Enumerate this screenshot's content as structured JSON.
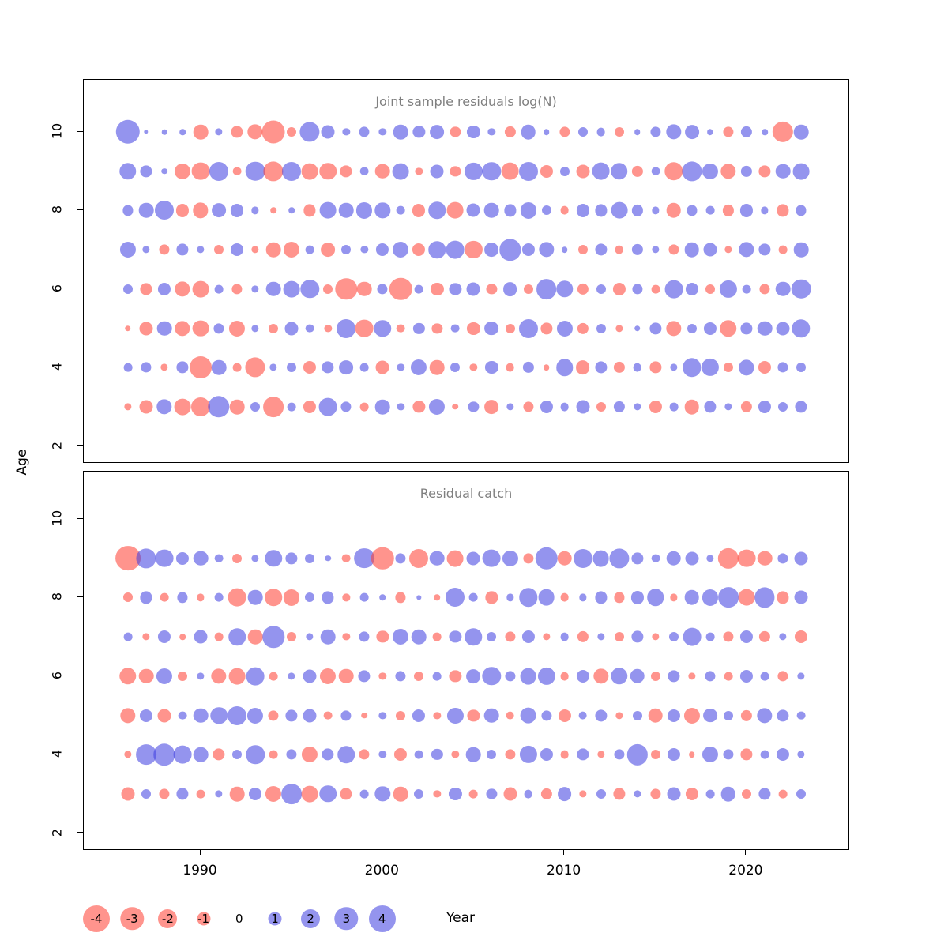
{
  "figure": {
    "y_axis_label": "Age",
    "x_axis_label": "Year"
  },
  "axes": {
    "y_tick_labels": [
      "10",
      "8",
      "6",
      "4",
      "2"
    ],
    "y_tick_ages": [
      10,
      8,
      6,
      4,
      2
    ],
    "x_tick_labels": [
      "1990",
      "2000",
      "2010",
      "2020"
    ],
    "x_tick_years": [
      1990,
      2000,
      2010,
      2020
    ]
  },
  "colors": {
    "negative": "#ff3c30",
    "positive": "#3c3ce0",
    "title_gray": "#7f7f7f"
  },
  "legend": {
    "values": [
      -4,
      -3,
      -2,
      -1,
      0,
      1,
      2,
      3,
      4
    ],
    "labels": [
      "-4",
      "-3",
      "-2",
      "-1",
      "0",
      "1",
      "2",
      "3",
      "4"
    ]
  },
  "chart_data": [
    {
      "type": "bubble",
      "title": "Joint sample residuals log(N)",
      "xlabel": "Year",
      "ylabel": "Age",
      "x_range": [
        1984.5,
        2026.5
      ],
      "y_range": [
        1.5,
        10.8
      ],
      "years": [
        1986,
        1987,
        1988,
        1989,
        1990,
        1991,
        1992,
        1993,
        1994,
        1995,
        1996,
        1997,
        1998,
        1999,
        2000,
        2001,
        2002,
        2003,
        2004,
        2005,
        2006,
        2007,
        2008,
        2009,
        2010,
        2011,
        2012,
        2013,
        2014,
        2015,
        2016,
        2017,
        2018,
        2019,
        2020,
        2021,
        2022,
        2023
      ],
      "series": [
        {
          "age": 10,
          "values": [
            3.2,
            0.1,
            0.15,
            0.2,
            -1.2,
            0.3,
            -0.8,
            -1.3,
            -2.9,
            -0.5,
            2.2,
            1.0,
            0.3,
            0.6,
            0.3,
            1.2,
            0.8,
            1.1,
            -0.6,
            0.9,
            0.3,
            -0.7,
            1.2,
            0.2,
            -0.6,
            0.5,
            0.4,
            -0.5,
            0.2,
            0.6,
            1.3,
            1.1,
            0.2,
            -0.6,
            0.7,
            0.2,
            -2.4,
            1.2
          ]
        },
        {
          "age": 9,
          "values": [
            1.6,
            0.8,
            0.2,
            -1.4,
            -1.8,
            2.0,
            -0.4,
            2.1,
            -2.2,
            2.0,
            -1.5,
            -1.6,
            -0.8,
            0.4,
            -1.2,
            1.5,
            -0.3,
            1.0,
            -0.6,
            1.7,
            1.9,
            -1.8,
            2.0,
            -0.9,
            0.5,
            -1.0,
            1.8,
            1.6,
            -0.7,
            0.4,
            -1.9,
            2.2,
            1.4,
            -1.3,
            0.7,
            -0.8,
            1.2,
            1.5
          ]
        },
        {
          "age": 8,
          "values": [
            0.6,
            1.2,
            2.0,
            -0.9,
            -1.3,
            1.1,
            0.9,
            0.3,
            -0.2,
            0.2,
            -0.8,
            1.5,
            1.2,
            1.4,
            1.3,
            0.4,
            -0.9,
            1.6,
            -1.5,
            1.0,
            1.2,
            0.8,
            1.4,
            0.5,
            -0.4,
            0.9,
            0.8,
            1.5,
            0.7,
            0.3,
            -1.2,
            0.6,
            0.4,
            -0.7,
            0.9,
            0.3,
            -0.8,
            0.6
          ]
        },
        {
          "age": 7,
          "values": [
            1.4,
            0.3,
            -0.6,
            0.8,
            0.3,
            -0.5,
            0.9,
            -0.3,
            -1.2,
            -1.4,
            0.4,
            -1.1,
            0.5,
            0.3,
            0.9,
            1.4,
            -0.9,
            1.6,
            1.8,
            -1.7,
            1.1,
            2.6,
            0.9,
            1.3,
            0.2,
            -0.5,
            0.8,
            -0.4,
            0.7,
            0.3,
            -0.6,
            1.2,
            1.0,
            -0.3,
            1.3,
            0.8,
            -0.4,
            1.2
          ]
        },
        {
          "age": 6,
          "values": [
            0.5,
            -0.8,
            0.9,
            -1.3,
            -1.5,
            0.4,
            -0.6,
            0.3,
            1.2,
            1.5,
            1.9,
            -0.5,
            -2.6,
            -1.2,
            0.6,
            -2.8,
            0.4,
            -0.9,
            0.8,
            1.0,
            -0.6,
            1.1,
            -0.5,
            2.3,
            1.6,
            -0.7,
            0.5,
            -0.9,
            0.6,
            -0.4,
            1.8,
            0.9,
            -0.5,
            1.7,
            0.4,
            -0.6,
            1.2,
            2.1
          ]
        },
        {
          "age": 5,
          "values": [
            -0.2,
            -1.0,
            1.2,
            -1.3,
            -1.5,
            0.6,
            -1.4,
            0.3,
            -0.5,
            1.0,
            0.4,
            -0.3,
            2.0,
            -1.8,
            1.6,
            -0.4,
            0.7,
            -0.6,
            0.4,
            -0.9,
            1.1,
            -0.5,
            2.0,
            -0.8,
            1.4,
            -0.7,
            0.5,
            -0.3,
            0.2,
            0.8,
            -1.3,
            0.5,
            0.9,
            -1.6,
            0.8,
            1.2,
            1.0,
            1.9
          ]
        },
        {
          "age": 4,
          "values": [
            0.4,
            0.6,
            -0.3,
            0.8,
            -2.7,
            1.2,
            -0.4,
            -2.2,
            0.3,
            0.5,
            -0.9,
            0.8,
            1.1,
            0.4,
            -1.0,
            0.3,
            1.4,
            -1.2,
            0.5,
            -0.3,
            0.9,
            -0.4,
            0.7,
            -0.2,
            1.6,
            -1.1,
            0.8,
            -0.7,
            0.4,
            -0.8,
            0.3,
            1.9,
            1.7,
            -0.5,
            1.3,
            -0.9,
            0.6,
            0.5
          ]
        },
        {
          "age": 3,
          "values": [
            -0.3,
            -1.0,
            1.3,
            -1.5,
            -2.0,
            2.6,
            -1.2,
            0.5,
            -2.3,
            0.4,
            -0.9,
            1.8,
            0.6,
            -0.4,
            1.2,
            0.3,
            -0.8,
            1.4,
            -0.2,
            0.6,
            -1.1,
            0.3,
            -0.6,
            0.9,
            0.4,
            1.0,
            -0.5,
            0.7,
            0.3,
            -0.9,
            0.4,
            -1.2,
            0.8,
            0.3,
            -0.7,
            0.9,
            0.5,
            0.8
          ]
        }
      ]
    },
    {
      "type": "bubble",
      "title": "Residual catch",
      "xlabel": "Year",
      "ylabel": "Age",
      "x_range": [
        1984.5,
        2026.5
      ],
      "y_range": [
        1.5,
        10.8
      ],
      "years": [
        1986,
        1987,
        1988,
        1989,
        1990,
        1991,
        1992,
        1993,
        1994,
        1995,
        1996,
        1997,
        1998,
        1999,
        2000,
        2001,
        2002,
        2003,
        2004,
        2005,
        2006,
        2007,
        2008,
        2009,
        2010,
        2011,
        2012,
        2013,
        2014,
        2015,
        2016,
        2017,
        2018,
        2019,
        2020,
        2021,
        2022,
        2023
      ],
      "series": [
        {
          "age": 9,
          "values": [
            -3.5,
            2.2,
            1.8,
            0.9,
            1.2,
            0.4,
            -0.5,
            0.3,
            1.6,
            0.8,
            0.5,
            0.2,
            -0.4,
            2.3,
            -2.8,
            0.6,
            -2.0,
            1.2,
            -1.5,
            1.0,
            1.8,
            1.4,
            -0.6,
            2.8,
            -1.2,
            2.0,
            1.5,
            2.2,
            0.8,
            0.4,
            1.2,
            1.0,
            0.3,
            -2.4,
            -1.8,
            -1.2,
            0.6,
            1.0
          ]
        },
        {
          "age": 8,
          "values": [
            -0.5,
            0.8,
            -0.4,
            0.6,
            -0.3,
            0.4,
            -1.8,
            1.2,
            -1.6,
            -1.4,
            0.5,
            0.8,
            -0.3,
            0.4,
            0.2,
            -0.6,
            0.1,
            -0.2,
            2.0,
            0.4,
            -0.8,
            0.3,
            1.9,
            1.5,
            -0.4,
            0.3,
            0.8,
            -0.6,
            0.9,
            1.6,
            -0.3,
            1.2,
            1.4,
            2.3,
            -1.5,
            2.2,
            -0.8,
            1.0
          ]
        },
        {
          "age": 7,
          "values": [
            0.4,
            -0.3,
            0.9,
            -0.2,
            1.0,
            -0.4,
            1.6,
            -1.2,
            2.6,
            -0.5,
            0.3,
            1.2,
            -0.3,
            0.6,
            -0.8,
            1.4,
            1.2,
            -0.4,
            0.8,
            1.6,
            0.5,
            -0.6,
            0.9,
            -0.3,
            0.4,
            -0.7,
            0.3,
            -0.5,
            0.8,
            -0.3,
            0.5,
            1.8,
            0.4,
            -0.6,
            0.9,
            -0.7,
            0.3,
            -0.9
          ]
        },
        {
          "age": 6,
          "values": [
            -1.6,
            -1.2,
            1.4,
            -0.5,
            0.3,
            -1.3,
            -1.5,
            1.8,
            -0.4,
            0.3,
            1.0,
            -1.4,
            -1.2,
            0.8,
            -0.3,
            0.6,
            -0.5,
            0.4,
            -0.8,
            1.1,
            1.9,
            0.6,
            1.5,
            1.7,
            -0.4,
            0.9,
            -1.3,
            1.6,
            1.2,
            -0.5,
            0.8,
            -0.3,
            0.6,
            -0.4,
            0.9,
            0.4,
            -0.6,
            0.3
          ]
        },
        {
          "age": 5,
          "values": [
            -1.3,
            0.9,
            -1.0,
            0.4,
            1.2,
            1.6,
            2.0,
            1.4,
            -0.6,
            0.8,
            1.0,
            -0.4,
            0.6,
            -0.2,
            0.3,
            -0.5,
            0.9,
            -0.3,
            1.4,
            -0.8,
            1.2,
            -0.4,
            1.5,
            0.6,
            -0.9,
            0.4,
            0.8,
            -0.3,
            0.5,
            -1.2,
            0.9,
            -1.4,
            1.1,
            0.5,
            -0.7,
            1.3,
            0.8,
            0.4
          ]
        },
        {
          "age": 4,
          "values": [
            -0.3,
            2.3,
            2.6,
            1.8,
            1.2,
            -0.8,
            0.5,
            1.9,
            -0.4,
            0.6,
            -1.4,
            0.8,
            1.6,
            -0.6,
            0.3,
            -0.9,
            0.4,
            0.7,
            -0.3,
            1.2,
            0.5,
            -0.6,
            1.7,
            0.9,
            -0.4,
            0.8,
            -0.3,
            0.6,
            2.4,
            -0.5,
            0.9,
            -0.2,
            1.4,
            0.6,
            -0.8,
            0.4,
            0.9,
            0.3
          ]
        },
        {
          "age": 3,
          "values": [
            -1.0,
            0.5,
            -0.6,
            0.8,
            -0.4,
            0.3,
            -1.2,
            0.9,
            -1.4,
            2.3,
            -1.5,
            1.6,
            -0.8,
            0.4,
            1.3,
            -1.2,
            0.5,
            -0.3,
            0.9,
            -0.4,
            0.6,
            -1.0,
            0.4,
            -0.7,
            1.1,
            -0.3,
            0.5,
            -0.8,
            0.3,
            -0.6,
            1.0,
            -0.9,
            0.4,
            1.2,
            -0.5,
            0.8,
            -0.4,
            0.5
          ]
        }
      ]
    }
  ]
}
